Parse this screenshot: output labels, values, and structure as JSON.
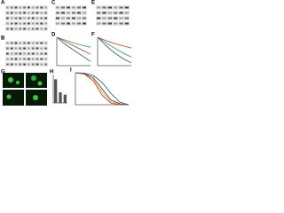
{
  "panels": [
    "A",
    "B",
    "C",
    "D",
    "E",
    "F",
    "G",
    "H",
    "I"
  ],
  "plots": {
    "D": {
      "xlim": [
        0,
        4
      ],
      "ylim": [
        0,
        100
      ],
      "x": [
        0,
        1,
        2,
        3,
        4
      ],
      "series": [
        {
          "color": "#1f4fa8",
          "values": [
            100,
            75,
            55,
            35,
            15
          ]
        },
        {
          "color": "#c0392b",
          "values": [
            100,
            85,
            70,
            55,
            40
          ]
        },
        {
          "color": "#2e9e44",
          "values": [
            100,
            90,
            80,
            72,
            65
          ]
        }
      ]
    },
    "F": {
      "xlim": [
        0,
        4
      ],
      "ylim": [
        0,
        100
      ],
      "x": [
        0,
        1,
        2,
        3,
        4
      ],
      "series": [
        {
          "color": "#1f4fa8",
          "values": [
            100,
            70,
            45,
            25,
            10
          ]
        },
        {
          "color": "#2e9e44",
          "values": [
            100,
            80,
            62,
            45,
            30
          ]
        },
        {
          "color": "#c0392b",
          "values": [
            100,
            88,
            78,
            70,
            62
          ]
        }
      ]
    },
    "I": {
      "xlim": [
        0,
        30
      ],
      "ylim": [
        0,
        100
      ],
      "x": [
        0,
        5,
        10,
        15,
        20,
        25,
        30
      ],
      "series": [
        {
          "color": "#333333",
          "values": [
            100,
            98,
            85,
            50,
            15,
            3,
            0
          ]
        },
        {
          "color": "#f39c12",
          "values": [
            100,
            97,
            80,
            40,
            10,
            1,
            0
          ]
        },
        {
          "color": "#1f4fa8",
          "values": [
            100,
            99,
            92,
            70,
            35,
            8,
            0
          ]
        },
        {
          "color": "#c0392b",
          "values": [
            100,
            96,
            75,
            30,
            5,
            0,
            0
          ]
        }
      ]
    }
  },
  "bars": {
    "ylim": [
      0,
      1.2
    ],
    "color": "#555555",
    "values": [
      1,
      0.45,
      0.35
    ]
  }
}
